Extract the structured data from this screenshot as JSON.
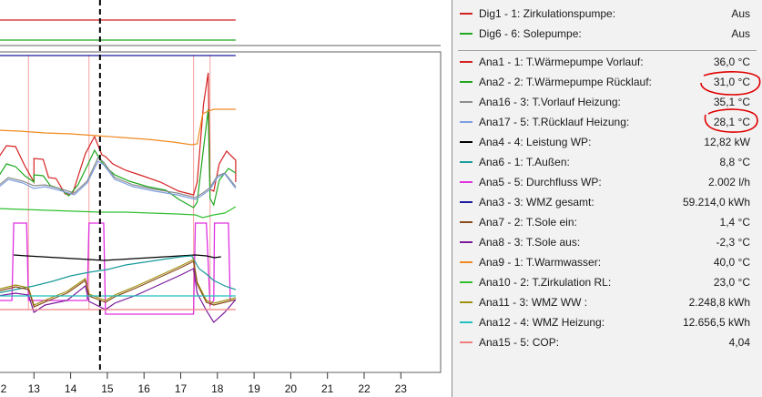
{
  "window": {
    "title": ""
  },
  "legend": {
    "digital": [
      {
        "id": "dig1",
        "label": "Dig1 - 1: Zirkulationspumpe:",
        "value": "Aus",
        "color": "#d62020"
      },
      {
        "id": "dig6",
        "label": "Dig6 - 6: Solepumpe:",
        "value": "Aus",
        "color": "#1fa81f"
      }
    ],
    "analog": [
      {
        "id": "ana1",
        "label": "Ana1 - 1: T.Wärmepumpe Vorlauf:",
        "value": "36,0 °C",
        "color": "#d62020"
      },
      {
        "id": "ana2",
        "label": "Ana2 - 2: T.Wärmepumpe Rücklauf:",
        "value": "31,0 °C",
        "color": "#1fa81f",
        "circled": true
      },
      {
        "id": "ana16",
        "label": "Ana16 - 3: T.Vorlauf Heizung:",
        "value": "35,1 °C",
        "color": "#8c8c8c"
      },
      {
        "id": "ana17",
        "label": "Ana17 - 5: T.Rücklauf Heizung:",
        "value": "28,1 °C",
        "color": "#7f9fe0",
        "circled": true
      },
      {
        "id": "ana4",
        "label": "Ana4 - 4: Leistung WP:",
        "value": "12,82 kW",
        "color": "#000000"
      },
      {
        "id": "ana6",
        "label": "Ana6 - 1: T.Außen:",
        "value": "8,8 °C",
        "color": "#1a9a9a"
      },
      {
        "id": "ana5",
        "label": "Ana5 - 5: Durchfluss WP:",
        "value": "2.002 l/h",
        "color": "#e030e0"
      },
      {
        "id": "ana3",
        "label": "Ana3 - 3: WMZ gesamt:",
        "value": "59.214,0 kWh",
        "color": "#1a1aa0"
      },
      {
        "id": "ana7",
        "label": "Ana7 - 2: T.Sole ein:",
        "value": "1,4 °C",
        "color": "#8a4a1a"
      },
      {
        "id": "ana8",
        "label": "Ana8 - 3: T.Sole aus:",
        "value": "-2,3 °C",
        "color": "#7a1a9a"
      },
      {
        "id": "ana9",
        "label": "Ana9 - 1: T.Warmwasser:",
        "value": "40,0 °C",
        "color": "#f08a20"
      },
      {
        "id": "ana10",
        "label": "Ana10 - 2: T.Zirkulation RL:",
        "value": "23,0 °C",
        "color": "#30c030"
      },
      {
        "id": "ana11",
        "label": "Ana11 - 3: WMZ WW :",
        "value": "2.248,8 kWh",
        "color": "#a09010"
      },
      {
        "id": "ana12",
        "label": "Ana12 - 4: WMZ Heizung:",
        "value": "12.656,5 kWh",
        "color": "#20c0c0"
      },
      {
        "id": "ana15",
        "label": "Ana15 - 5: COP:",
        "value": "4,04",
        "color": "#f08080"
      }
    ]
  },
  "chart_data": {
    "type": "line",
    "title": "",
    "xlabel": "",
    "ylabel": "",
    "x_ticks": [
      "2",
      "13",
      "14",
      "15",
      "16",
      "17",
      "18",
      "19",
      "20",
      "21",
      "22",
      "23"
    ],
    "xlim": [
      12,
      23.5
    ],
    "cursor_x": 14.8,
    "grid": false,
    "legend_placement": "right",
    "series": [
      {
        "id": "ana1",
        "color": "#d62020",
        "points": [
          [
            12,
            175
          ],
          [
            12.25,
            160
          ],
          [
            12.5,
            161
          ],
          [
            12.75,
            182
          ],
          [
            13,
            200
          ],
          [
            13,
            174
          ],
          [
            13.25,
            175
          ],
          [
            13.4,
            195
          ],
          [
            13.6,
            196
          ],
          [
            13.85,
            213
          ],
          [
            14.05,
            213
          ],
          [
            14.4,
            169
          ],
          [
            14.65,
            150
          ],
          [
            14.85,
            170
          ],
          [
            14.95,
            172
          ],
          [
            15.15,
            180
          ],
          [
            15.5,
            187
          ],
          [
            15.95,
            193
          ],
          [
            16.45,
            200
          ],
          [
            16.95,
            210
          ],
          [
            17.35,
            214
          ],
          [
            17.45,
            200
          ],
          [
            17.62,
            115
          ],
          [
            17.75,
            80
          ],
          [
            17.8,
            208
          ],
          [
            17.9,
            210
          ],
          [
            18.05,
            180
          ],
          [
            18.25,
            166
          ],
          [
            18.5,
            176
          ],
          [
            18.5,
            200
          ]
        ]
      },
      {
        "id": "ana2",
        "color": "#1fa81f",
        "points": [
          [
            12,
            196
          ],
          [
            12.25,
            180
          ],
          [
            12.5,
            183
          ],
          [
            12.75,
            193
          ],
          [
            13,
            200
          ],
          [
            13,
            192
          ],
          [
            13.25,
            193
          ],
          [
            13.45,
            204
          ],
          [
            13.7,
            207
          ],
          [
            13.95,
            215
          ],
          [
            14.2,
            203
          ],
          [
            14.5,
            178
          ],
          [
            14.65,
            165
          ],
          [
            14.85,
            178
          ],
          [
            14.95,
            183
          ],
          [
            15.2,
            192
          ],
          [
            15.6,
            199
          ],
          [
            16.1,
            205
          ],
          [
            16.6,
            209
          ],
          [
            16.95,
            219
          ],
          [
            17.35,
            228
          ],
          [
            17.45,
            222
          ],
          [
            17.6,
            170
          ],
          [
            17.75,
            120
          ],
          [
            17.8,
            218
          ],
          [
            17.9,
            225
          ],
          [
            18.05,
            198
          ],
          [
            18.3,
            185
          ],
          [
            18.5,
            190
          ]
        ]
      },
      {
        "id": "ana16",
        "color": "#8c8c8c",
        "points": [
          [
            12,
            205
          ],
          [
            12.3,
            195
          ],
          [
            12.7,
            199
          ],
          [
            13,
            204
          ],
          [
            13.3,
            203
          ],
          [
            13.7,
            207
          ],
          [
            14.1,
            212
          ],
          [
            14.45,
            199
          ],
          [
            14.75,
            173
          ],
          [
            14.9,
            178
          ],
          [
            15.2,
            195
          ],
          [
            15.7,
            203
          ],
          [
            16.3,
            208
          ],
          [
            16.9,
            212
          ],
          [
            17.4,
            217
          ],
          [
            17.6,
            212
          ],
          [
            17.8,
            206
          ],
          [
            18,
            193
          ],
          [
            18.2,
            190
          ],
          [
            18.5,
            205
          ]
        ]
      },
      {
        "id": "ana17",
        "color": "#7f9fe0",
        "points": [
          [
            12,
            207
          ],
          [
            12.3,
            197
          ],
          [
            12.7,
            201
          ],
          [
            13,
            207
          ],
          [
            13.3,
            205
          ],
          [
            13.7,
            209
          ],
          [
            14.1,
            214
          ],
          [
            14.45,
            201
          ],
          [
            14.75,
            177
          ],
          [
            14.9,
            181
          ],
          [
            15.2,
            197
          ],
          [
            15.7,
            205
          ],
          [
            16.3,
            210
          ],
          [
            16.9,
            214
          ],
          [
            17.4,
            219
          ],
          [
            17.6,
            214
          ],
          [
            17.8,
            208
          ],
          [
            18,
            195
          ],
          [
            18.2,
            191
          ],
          [
            18.5,
            207
          ]
        ]
      },
      {
        "id": "ana9",
        "color": "#f08a20",
        "points": [
          [
            12,
            143
          ],
          [
            12.6,
            144
          ],
          [
            13.3,
            146
          ],
          [
            14,
            147
          ],
          [
            14.7,
            149
          ],
          [
            15.4,
            151
          ],
          [
            16.1,
            153
          ],
          [
            16.8,
            156
          ],
          [
            17.3,
            159
          ],
          [
            17.45,
            158
          ],
          [
            17.6,
            125
          ],
          [
            17.75,
            122
          ],
          [
            17.9,
            120
          ],
          [
            18.5,
            120
          ]
        ]
      },
      {
        "id": "ana10",
        "color": "#30c030",
        "points": [
          [
            12,
            229
          ],
          [
            12.7,
            230
          ],
          [
            13.4,
            231
          ],
          [
            14.1,
            232
          ],
          [
            14.8,
            233
          ],
          [
            15.5,
            233
          ],
          [
            16.2,
            234
          ],
          [
            16.9,
            235
          ],
          [
            17.4,
            236
          ],
          [
            17.6,
            239
          ],
          [
            17.9,
            236
          ],
          [
            18.2,
            234
          ],
          [
            18.5,
            227
          ]
        ]
      },
      {
        "id": "ana3",
        "color": "#1a1aa0",
        "points": [
          [
            12,
            61
          ],
          [
            18.5,
            61
          ]
        ]
      },
      {
        "id": "dig1",
        "color": "#d62020",
        "points": [
          [
            12,
            22
          ],
          [
            18.5,
            22
          ]
        ]
      },
      {
        "id": "dig6",
        "color": "#1fa81f",
        "points": [
          [
            12,
            44
          ],
          [
            18.5,
            44
          ]
        ]
      },
      {
        "id": "ana5",
        "color": "#e030e0",
        "points": [
          [
            12,
            330
          ],
          [
            12.4,
            330
          ],
          [
            12.45,
            245
          ],
          [
            12.8,
            245
          ],
          [
            12.85,
            330
          ],
          [
            14.45,
            330
          ],
          [
            14.5,
            245
          ],
          [
            14.9,
            245
          ],
          [
            14.95,
            345
          ],
          [
            17.35,
            345
          ],
          [
            17.4,
            245
          ],
          [
            17.7,
            245
          ],
          [
            17.8,
            335
          ],
          [
            17.9,
            330
          ],
          [
            17.92,
            245
          ],
          [
            18.3,
            245
          ],
          [
            18.35,
            330
          ]
        ]
      },
      {
        "id": "ana4",
        "color": "#000000",
        "points": [
          [
            12.45,
            280
          ],
          [
            12.8,
            281
          ],
          [
            14.5,
            285
          ],
          [
            14.9,
            286
          ],
          [
            17.4,
            280
          ],
          [
            17.7,
            281
          ],
          [
            17.92,
            283
          ],
          [
            18.1,
            282
          ]
        ]
      },
      {
        "id": "ana6",
        "color": "#1a9a9a",
        "points": [
          [
            12,
            322
          ],
          [
            12.5,
            318
          ],
          [
            13,
            314
          ],
          [
            13.5,
            309
          ],
          [
            14,
            303
          ],
          [
            14.5,
            299
          ],
          [
            15,
            296
          ],
          [
            15.5,
            291
          ],
          [
            16,
            288
          ],
          [
            16.5,
            285
          ],
          [
            17,
            282
          ],
          [
            17.3,
            281
          ],
          [
            17.5,
            295
          ],
          [
            17.7,
            301
          ],
          [
            17.9,
            308
          ],
          [
            18.2,
            314
          ],
          [
            18.5,
            318
          ]
        ]
      },
      {
        "id": "ana11",
        "color": "#a09010",
        "points": [
          [
            12,
            318
          ],
          [
            12.5,
            313
          ],
          [
            12.85,
            316
          ],
          [
            13,
            335
          ],
          [
            13.4,
            328
          ],
          [
            13.9,
            320
          ],
          [
            14.4,
            306
          ],
          [
            14.5,
            323
          ],
          [
            14.95,
            330
          ],
          [
            15.2,
            324
          ],
          [
            15.8,
            314
          ],
          [
            16.4,
            303
          ],
          [
            17,
            292
          ],
          [
            17.35,
            285
          ],
          [
            17.45,
            310
          ],
          [
            17.7,
            330
          ],
          [
            17.9,
            333
          ],
          [
            18.2,
            330
          ],
          [
            18.5,
            327
          ]
        ]
      },
      {
        "id": "ana7",
        "color": "#8a4a1a",
        "points": [
          [
            12,
            320
          ],
          [
            12.5,
            315
          ],
          [
            12.85,
            318
          ],
          [
            13,
            337
          ],
          [
            13.4,
            330
          ],
          [
            13.9,
            322
          ],
          [
            14.4,
            308
          ],
          [
            14.5,
            325
          ],
          [
            14.95,
            332
          ],
          [
            15.2,
            326
          ],
          [
            15.8,
            316
          ],
          [
            16.4,
            305
          ],
          [
            17,
            294
          ],
          [
            17.35,
            287
          ],
          [
            17.45,
            312
          ],
          [
            17.7,
            332
          ],
          [
            17.9,
            335
          ],
          [
            18.2,
            332
          ],
          [
            18.5,
            329
          ]
        ]
      },
      {
        "id": "ana8",
        "color": "#7a1a9a",
        "points": [
          [
            12,
            325
          ],
          [
            12.5,
            322
          ],
          [
            12.85,
            324
          ],
          [
            13,
            343
          ],
          [
            13.3,
            335
          ],
          [
            13.9,
            330
          ],
          [
            14.4,
            314
          ],
          [
            14.5,
            331
          ],
          [
            14.95,
            340
          ],
          [
            15.2,
            333
          ],
          [
            15.8,
            324
          ],
          [
            16.4,
            313
          ],
          [
            17,
            302
          ],
          [
            17.35,
            295
          ],
          [
            17.45,
            322
          ],
          [
            17.7,
            341
          ],
          [
            17.9,
            354
          ],
          [
            18.2,
            343
          ],
          [
            18.5,
            329
          ]
        ]
      },
      {
        "id": "ana12",
        "color": "#20c0c0",
        "points": [
          [
            12,
            325
          ],
          [
            18.5,
            325
          ]
        ]
      },
      {
        "id": "ana15",
        "color": "#f08080",
        "points": [
          [
            12,
            340
          ],
          [
            18.5,
            340
          ]
        ]
      }
    ]
  }
}
